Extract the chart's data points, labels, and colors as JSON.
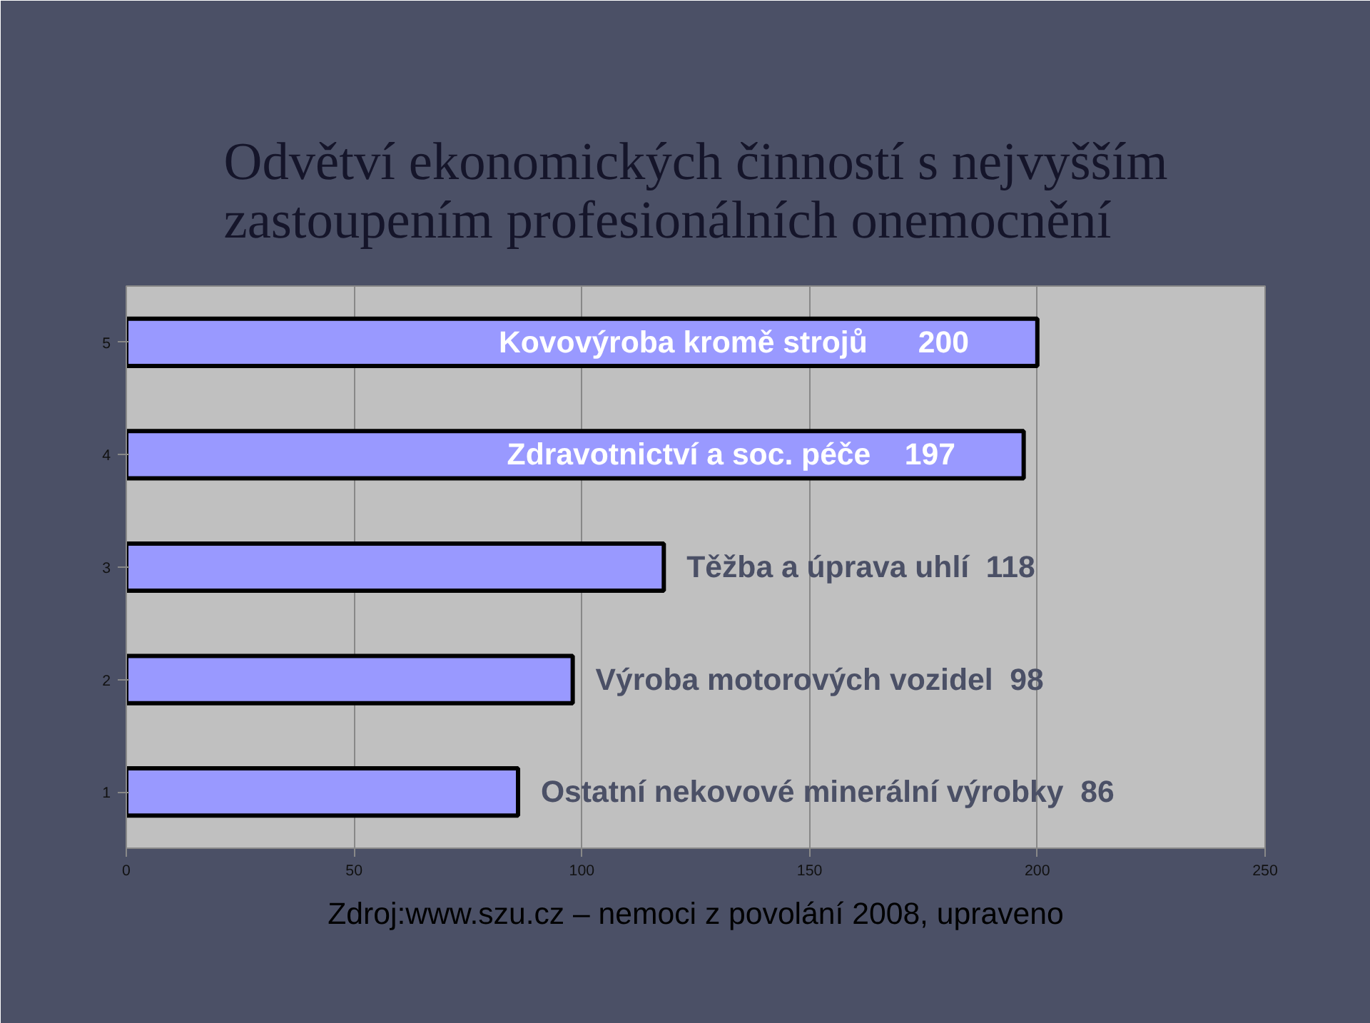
{
  "chart_data": {
    "type": "bar",
    "orientation": "horizontal",
    "title": "Odvětví ekonomických činností s nejvyšším\nzastoupením profesionálních onemocnění",
    "categories": [
      "5",
      "4",
      "3",
      "2",
      "1"
    ],
    "values": [
      200,
      197,
      118,
      98,
      86
    ],
    "value_labels": [
      "Kovovýroba kromě strojů      200",
      "Zdravotnictví a soc. péče    197",
      "Těžba a úprava uhlí   118",
      "Výroba motorových vozidel   98",
      "Ostatní nekovové minerální výrobky  86"
    ],
    "color": "#9999ff",
    "xlim": [
      0,
      250
    ],
    "xticks": [
      0,
      50,
      100,
      150,
      200,
      250
    ],
    "grid": "x",
    "annotations": [
      "Zdroj:www.szu.cz – nemoci z povolání 2008, upraveno"
    ]
  }
}
